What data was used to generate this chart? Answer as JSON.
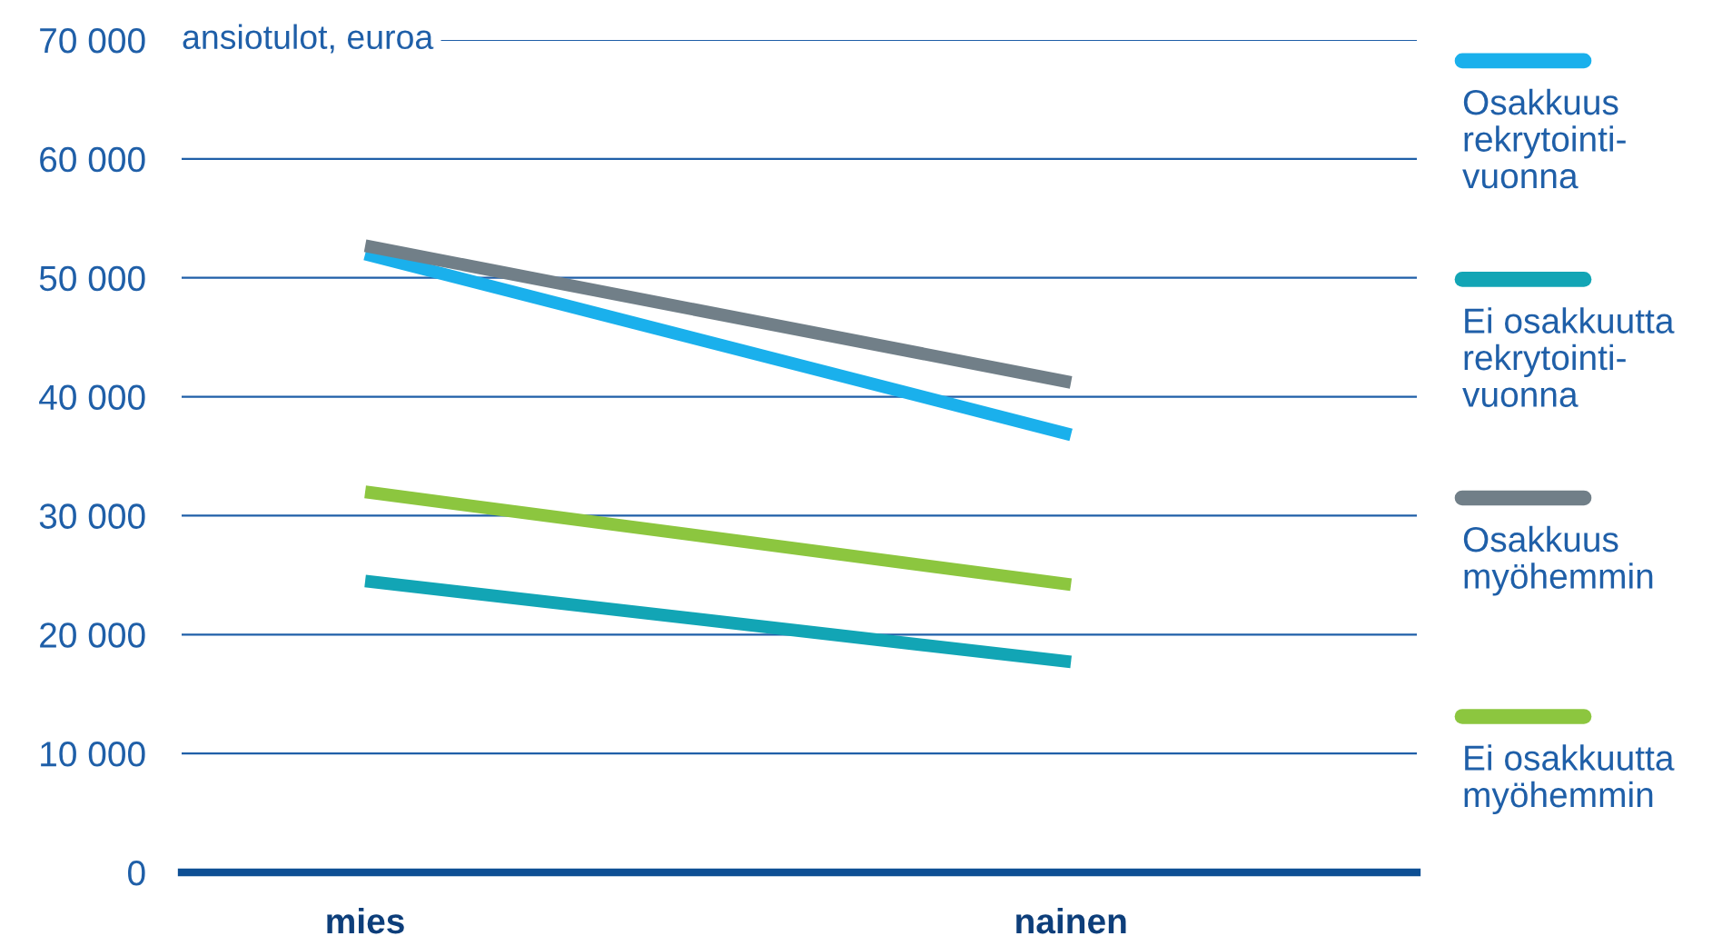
{
  "chart_data": {
    "type": "line",
    "ylabel": "ansiotulot, euroa",
    "categories": [
      "mies",
      "nainen"
    ],
    "series": [
      {
        "name": "Osakkuus\nrekrytointi-\nvuonna",
        "color": "#1ab0ec",
        "values": [
          52000,
          36800
        ]
      },
      {
        "name": "Ei osakkuutta\nrekrytointi-\nvuonna",
        "color": "#12a5b5",
        "values": [
          24500,
          17700
        ]
      },
      {
        "name": "Osakkuus\nmyöhemmin",
        "color": "#717f88",
        "values": [
          52700,
          41200
        ]
      },
      {
        "name": "Ei osakkuutta\nmyöhemmin",
        "color": "#8cc63f",
        "values": [
          32000,
          24200
        ]
      }
    ],
    "ylim": [
      0,
      70000
    ],
    "yticks": [
      {
        "value": 0,
        "label": "0"
      },
      {
        "value": 10000,
        "label": "10 000"
      },
      {
        "value": 20000,
        "label": "20 000"
      },
      {
        "value": 30000,
        "label": "30 000"
      },
      {
        "value": 40000,
        "label": "40 000"
      },
      {
        "value": 50000,
        "label": "50 000"
      },
      {
        "value": 60000,
        "label": "60 000"
      },
      {
        "value": 70000,
        "label": "70 000"
      }
    ],
    "grid": "y",
    "legend": "right",
    "marker": "none",
    "line_style": "solid"
  }
}
